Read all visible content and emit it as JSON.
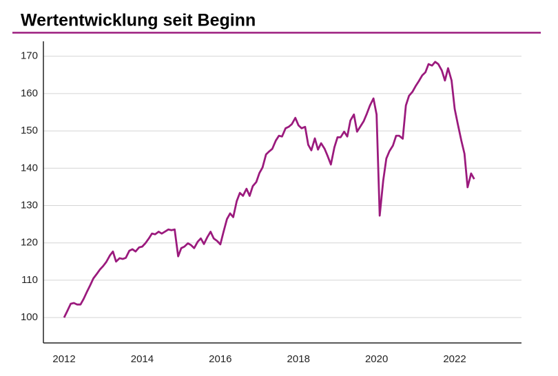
{
  "chart_data": {
    "type": "line",
    "title": "Wertentwicklung seit Beginn",
    "x": [
      2012,
      2012.08,
      2012.17,
      2012.25,
      2012.33,
      2012.42,
      2012.5,
      2012.58,
      2012.67,
      2012.75,
      2012.83,
      2012.92,
      2013,
      2013.08,
      2013.17,
      2013.25,
      2013.33,
      2013.42,
      2013.5,
      2013.58,
      2013.67,
      2013.75,
      2013.83,
      2013.92,
      2014,
      2014.08,
      2014.17,
      2014.25,
      2014.33,
      2014.42,
      2014.5,
      2014.58,
      2014.67,
      2014.75,
      2014.83,
      2014.92,
      2015,
      2015.08,
      2015.17,
      2015.25,
      2015.33,
      2015.42,
      2015.5,
      2015.58,
      2015.67,
      2015.75,
      2015.83,
      2015.92,
      2016,
      2016.08,
      2016.17,
      2016.25,
      2016.33,
      2016.42,
      2016.5,
      2016.58,
      2016.67,
      2016.75,
      2016.83,
      2016.92,
      2017,
      2017.08,
      2017.17,
      2017.25,
      2017.33,
      2017.42,
      2017.5,
      2017.58,
      2017.67,
      2017.75,
      2017.83,
      2017.92,
      2018,
      2018.08,
      2018.17,
      2018.25,
      2018.33,
      2018.42,
      2018.5,
      2018.58,
      2018.67,
      2018.75,
      2018.83,
      2018.92,
      2019,
      2019.08,
      2019.17,
      2019.25,
      2019.33,
      2019.42,
      2019.5,
      2019.58,
      2019.67,
      2019.75,
      2019.83,
      2019.92,
      2020,
      2020.08,
      2020.17,
      2020.25,
      2020.33,
      2020.42,
      2020.5,
      2020.58,
      2020.67,
      2020.75,
      2020.83,
      2020.92,
      2021,
      2021.08,
      2021.17,
      2021.25,
      2021.33,
      2021.42,
      2021.5,
      2021.58,
      2021.67,
      2021.75,
      2021.83,
      2021.92,
      2022,
      2022.08,
      2022.17,
      2022.25,
      2022.33,
      2022.42,
      2022.5
    ],
    "series": [
      {
        "color": "#9b1a7d",
        "values": [
          100,
          101.7,
          103.7,
          103.9,
          103.5,
          103.5,
          105,
          106.8,
          108.7,
          110.5,
          111.6,
          112.9,
          113.8,
          114.9,
          116.6,
          117.7,
          115,
          115.9,
          115.7,
          116,
          117.9,
          118.3,
          117.7,
          118.8,
          119,
          119.9,
          121.2,
          122.5,
          122.3,
          123,
          122.5,
          123,
          123.6,
          123.4,
          123.6,
          116.4,
          118.6,
          119,
          119.9,
          119.4,
          118.6,
          120.3,
          121.2,
          119.7,
          121.6,
          123,
          121.2,
          120.5,
          119.6,
          122.9,
          126.4,
          127.9,
          126.9,
          131.2,
          133.4,
          132.6,
          134.5,
          132.6,
          135.2,
          136.3,
          138.7,
          140.2,
          143.7,
          144.5,
          145.2,
          147.4,
          148.7,
          148.5,
          150.7,
          151.1,
          151.8,
          153.5,
          151.5,
          150.7,
          151.1,
          146.3,
          144.8,
          148,
          145,
          146.7,
          145.2,
          143.2,
          141,
          145.6,
          148.3,
          148.3,
          149.8,
          148.5,
          152.8,
          154.4,
          149.8,
          151.1,
          152.6,
          154.6,
          156.8,
          158.7,
          154.4,
          127.3,
          136.7,
          142.6,
          144.6,
          146.1,
          148.7,
          148.7,
          147.9,
          156.8,
          159.4,
          160.5,
          162,
          163.3,
          164.9,
          165.7,
          167.9,
          167.5,
          168.5,
          167.9,
          166.2,
          163.5,
          166.8,
          163.5,
          155.9,
          151.8,
          147.4,
          143.9,
          134.9,
          138.6,
          137.1
        ]
      }
    ],
    "xlim": [
      2011.47,
      2023.71
    ],
    "xticks": [
      2012,
      2014,
      2016,
      2018,
      2020,
      2022
    ],
    "ylim": [
      93.2,
      174
    ],
    "yticks": [
      100,
      110,
      120,
      130,
      140,
      150,
      160,
      170
    ],
    "grid": true
  }
}
